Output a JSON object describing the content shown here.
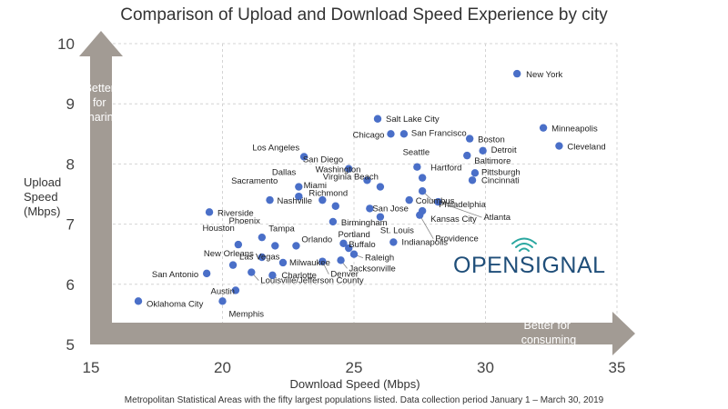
{
  "chart_data": {
    "type": "scatter",
    "title": "Comparison of Upload and Download Speed Experience by city",
    "xlabel": "Download Speed (Mbps)",
    "ylabel": [
      "Upload",
      "Speed",
      "(Mbps)"
    ],
    "xlim": [
      15,
      35
    ],
    "ylim": [
      5,
      10
    ],
    "xticks": [
      "15",
      "20",
      "25",
      "30",
      "35"
    ],
    "yticks": [
      "5",
      "6",
      "7",
      "8",
      "9",
      "10"
    ],
    "grid": true,
    "point_color": "#4a6fc8",
    "arrow_color": "#a29b94",
    "y_arrow_label": [
      "Better",
      "for",
      "sharing"
    ],
    "x_arrow_label": [
      "Better for",
      "consuming"
    ],
    "footnote": "Metropolitan Statistical Areas with the fifty largest populations listed. Data collection period January 1 – March 30, 2019",
    "logo": "OPENSIGNAL",
    "points": [
      {
        "label": "New York",
        "x": 31.2,
        "y": 9.5
      },
      {
        "label": "Minneapolis",
        "x": 32.2,
        "y": 8.6
      },
      {
        "label": "Cleveland",
        "x": 32.8,
        "y": 8.3
      },
      {
        "label": "Salt Lake City",
        "x": 25.9,
        "y": 8.75
      },
      {
        "label": "Chicago",
        "x": 26.4,
        "y": 8.5
      },
      {
        "label": "San Francisco",
        "x": 26.9,
        "y": 8.5
      },
      {
        "label": "Boston",
        "x": 29.4,
        "y": 8.42
      },
      {
        "label": "Detroit",
        "x": 29.9,
        "y": 8.22
      },
      {
        "label": "Los Angeles",
        "x": 23.1,
        "y": 8.12
      },
      {
        "label": "San Diego",
        "x": 24.8,
        "y": 7.92
      },
      {
        "label": "Seattle",
        "x": 27.4,
        "y": 7.95
      },
      {
        "label": "Hartford",
        "x": 27.6,
        "y": 7.77
      },
      {
        "label": "Baltimore",
        "x": 29.3,
        "y": 8.14
      },
      {
        "label": "Pittsburgh",
        "x": 29.6,
        "y": 7.85
      },
      {
        "label": "Cincinnati",
        "x": 29.5,
        "y": 7.73
      },
      {
        "label": "Washington",
        "x": 25.5,
        "y": 7.73
      },
      {
        "label": "Virginia Beach",
        "x": 26.0,
        "y": 7.62
      },
      {
        "label": "Dallas",
        "x": 22.9,
        "y": 7.62
      },
      {
        "label": "Sacramento",
        "x": 22.9,
        "y": 7.46
      },
      {
        "label": "Miami",
        "x": 23.8,
        "y": 7.4
      },
      {
        "label": "Nashville",
        "x": 21.8,
        "y": 7.4
      },
      {
        "label": "Philadelphia",
        "x": 27.6,
        "y": 7.55
      },
      {
        "label": "Richmond",
        "x": 24.3,
        "y": 7.3
      },
      {
        "label": "Columbus",
        "x": 27.1,
        "y": 7.4
      },
      {
        "label": "Atlanta",
        "x": 28.2,
        "y": 7.37
      },
      {
        "label": "San Jose",
        "x": 25.6,
        "y": 7.26
      },
      {
        "label": "Kansas City",
        "x": 27.6,
        "y": 7.22
      },
      {
        "label": "Riverside",
        "x": 19.5,
        "y": 7.2
      },
      {
        "label": "Providence",
        "x": 27.5,
        "y": 7.15
      },
      {
        "label": "St. Louis",
        "x": 26.0,
        "y": 7.12
      },
      {
        "label": "Birmingham",
        "x": 24.2,
        "y": 7.04
      },
      {
        "label": "Houston",
        "x": 20.6,
        "y": 6.66
      },
      {
        "label": "Phoenix",
        "x": 21.5,
        "y": 6.78
      },
      {
        "label": "Tampa",
        "x": 22.0,
        "y": 6.64
      },
      {
        "label": "Orlando",
        "x": 22.8,
        "y": 6.64
      },
      {
        "label": "Portland",
        "x": 24.6,
        "y": 6.68
      },
      {
        "label": "Indianapolis",
        "x": 26.5,
        "y": 6.7
      },
      {
        "label": "Buffalo",
        "x": 24.8,
        "y": 6.6
      },
      {
        "label": "Raleigh",
        "x": 25.0,
        "y": 6.5
      },
      {
        "label": "Jacksonville",
        "x": 24.5,
        "y": 6.4
      },
      {
        "label": "New Orleans",
        "x": 21.5,
        "y": 6.45
      },
      {
        "label": "Las Vegas",
        "x": 20.4,
        "y": 6.32
      },
      {
        "label": "Milwaukee",
        "x": 22.3,
        "y": 6.36
      },
      {
        "label": "Denver",
        "x": 23.8,
        "y": 6.38
      },
      {
        "label": "Charlotte",
        "x": 21.9,
        "y": 6.15
      },
      {
        "label": "San Antonio",
        "x": 19.4,
        "y": 6.18
      },
      {
        "label": "Austin",
        "x": 20.5,
        "y": 5.9
      },
      {
        "label": "Louisville/Jefferson County",
        "x": 21.1,
        "y": 6.2
      },
      {
        "label": "Oklahoma City",
        "x": 16.8,
        "y": 5.72
      },
      {
        "label": "Memphis",
        "x": 20.0,
        "y": 5.72
      }
    ]
  }
}
